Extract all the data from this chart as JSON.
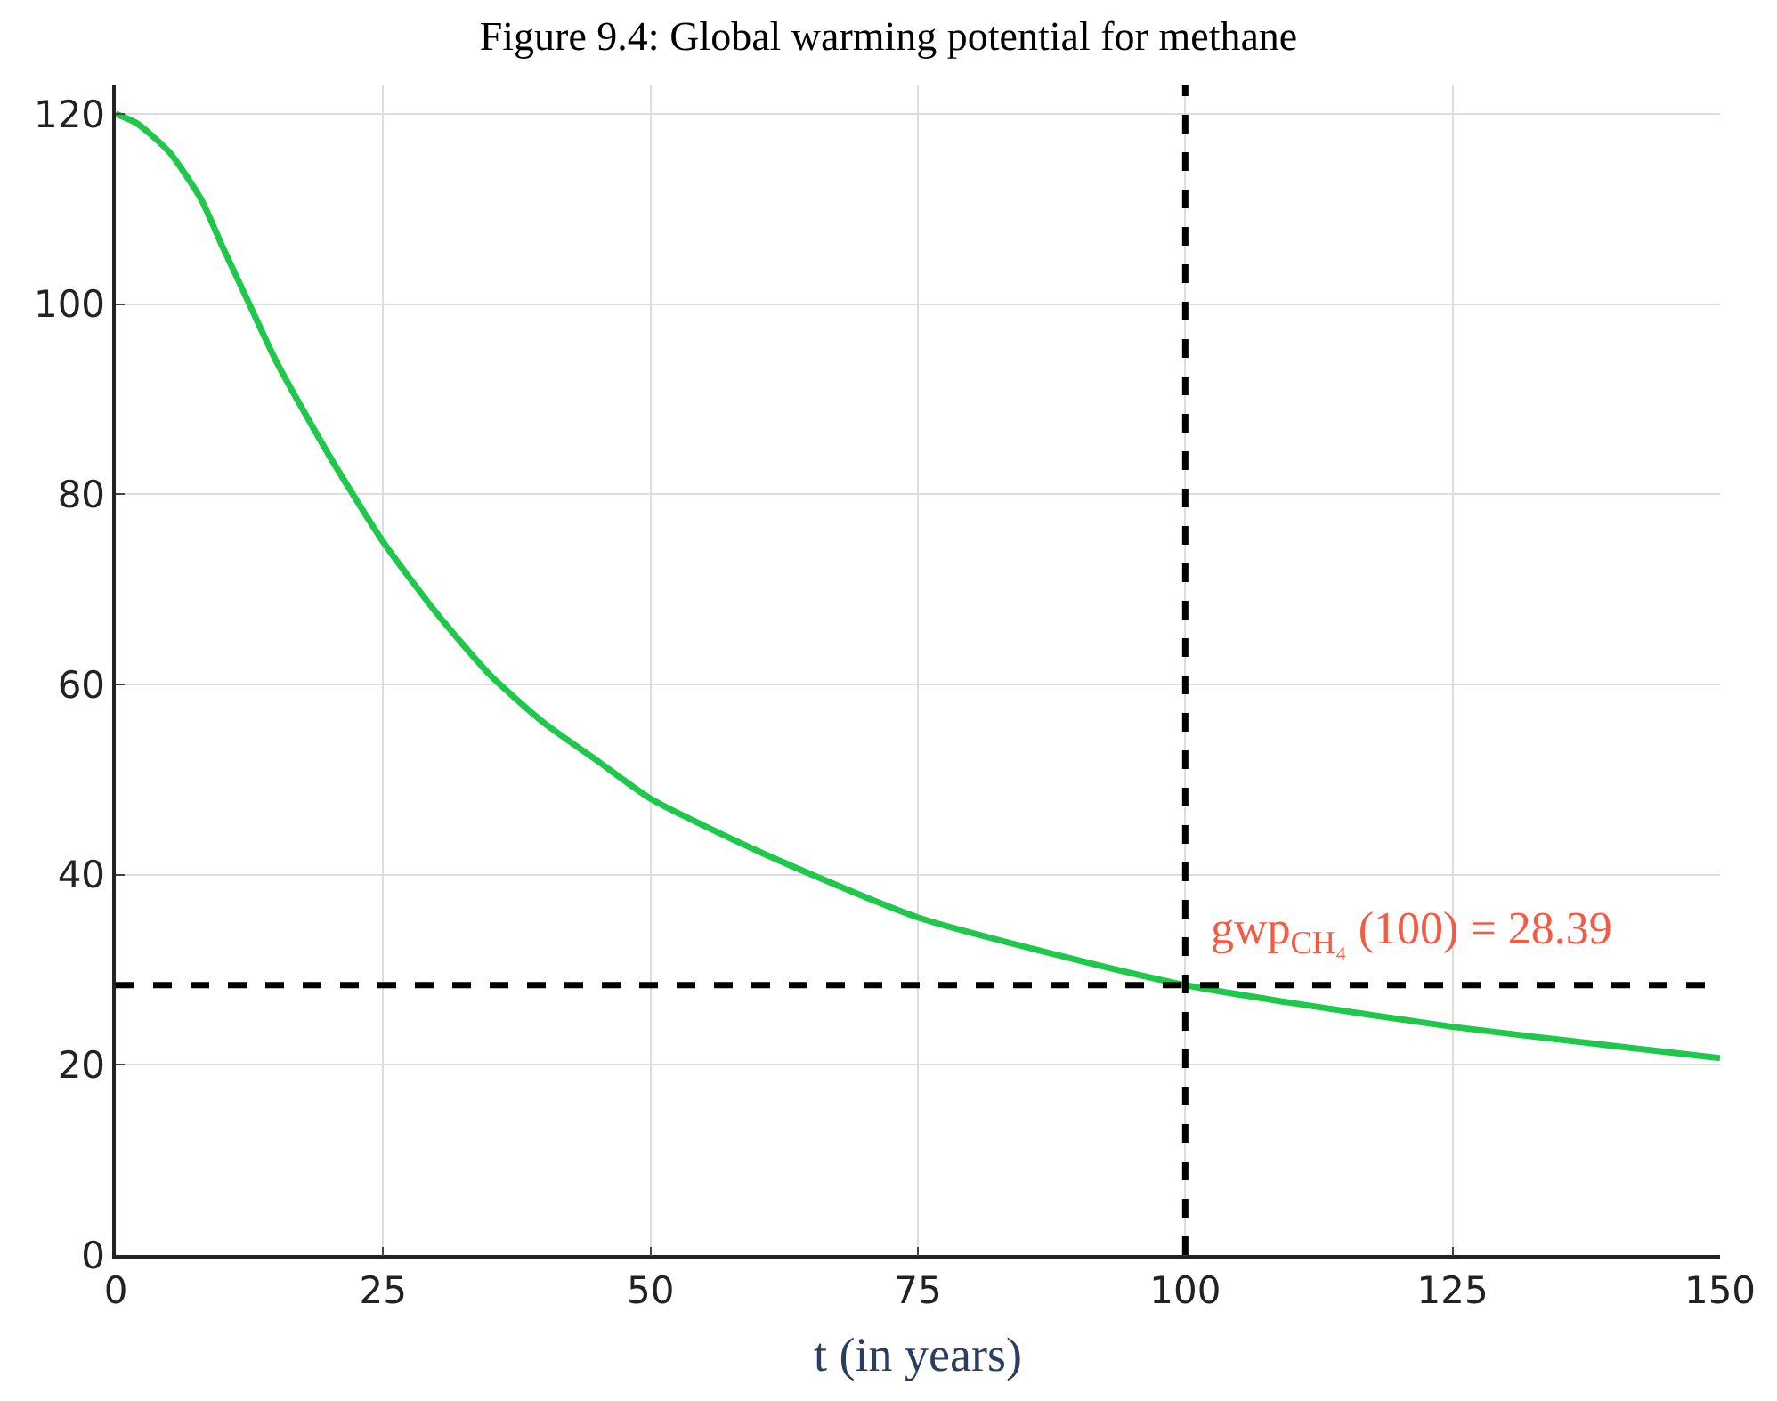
{
  "chart_data": {
    "type": "line",
    "title": "Figure 9.4: Global warming potential for methane",
    "xlabel": "t (in years)",
    "x": [
      0,
      2,
      5,
      8,
      10,
      12.5,
      15,
      20,
      25,
      30,
      35,
      40,
      45,
      50,
      60,
      75,
      90,
      100,
      110,
      125,
      140,
      150
    ],
    "series": [
      {
        "color": "#1fc84a",
        "values": [
          120,
          119,
          116,
          111,
          106,
          100,
          94,
          84,
          75,
          67.5,
          61,
          56,
          52,
          48,
          42.5,
          35.5,
          31,
          28.39,
          26.5,
          24,
          22,
          20.7
        ]
      }
    ],
    "xlim": [
      0,
      150
    ],
    "xticks": [
      0,
      25,
      50,
      75,
      100,
      125,
      150
    ],
    "ylim": [
      0,
      123
    ],
    "yticks": [
      0,
      20,
      40,
      60,
      80,
      100,
      120
    ],
    "grid": true,
    "line_style": "solid",
    "ref_lines": [
      {
        "axis": "x",
        "value": 100,
        "color": "#000000",
        "line_style": "dashed"
      },
      {
        "axis": "y",
        "value": 28.39,
        "color": "#000000",
        "line_style": "dashed"
      }
    ],
    "annotations": [
      {
        "text": "gwp$_{CH₄}$ (100) = 28.39",
        "x": 100,
        "y": 28.39
      }
    ]
  }
}
